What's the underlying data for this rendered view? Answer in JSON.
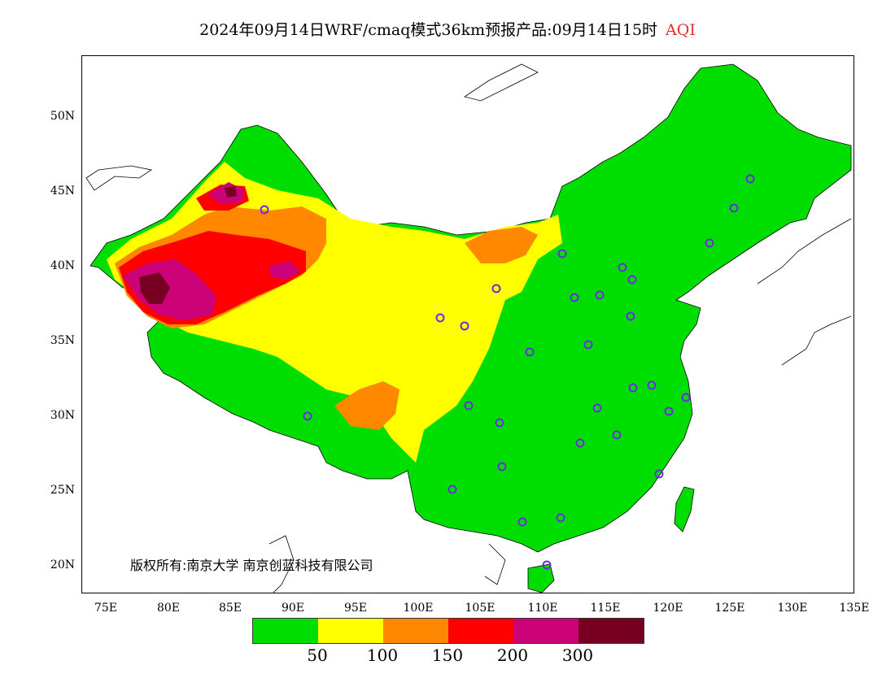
{
  "title": {
    "main": "2024年09月14日WRF/cmaq模式36km预报产品:09月14日15时",
    "variable": "AQI",
    "accent_color": "#e0302a"
  },
  "map": {
    "lat_labels": [
      "50N",
      "45N",
      "40N",
      "35N",
      "30N",
      "25N",
      "20N"
    ],
    "lon_labels": [
      "75E",
      "80E",
      "85E",
      "90E",
      "95E",
      "100E",
      "105E",
      "110E",
      "115E",
      "120E",
      "125E",
      "130E",
      "135E"
    ],
    "copyright": "版权所有:南京大学 南京创蓝科技有限公司"
  },
  "legend": {
    "colors": [
      "#00dd00",
      "#ffff00",
      "#ff8800",
      "#ff0000",
      "#cc0077",
      "#770022"
    ],
    "ticks": [
      "50",
      "100",
      "150",
      "200",
      "300"
    ]
  }
}
